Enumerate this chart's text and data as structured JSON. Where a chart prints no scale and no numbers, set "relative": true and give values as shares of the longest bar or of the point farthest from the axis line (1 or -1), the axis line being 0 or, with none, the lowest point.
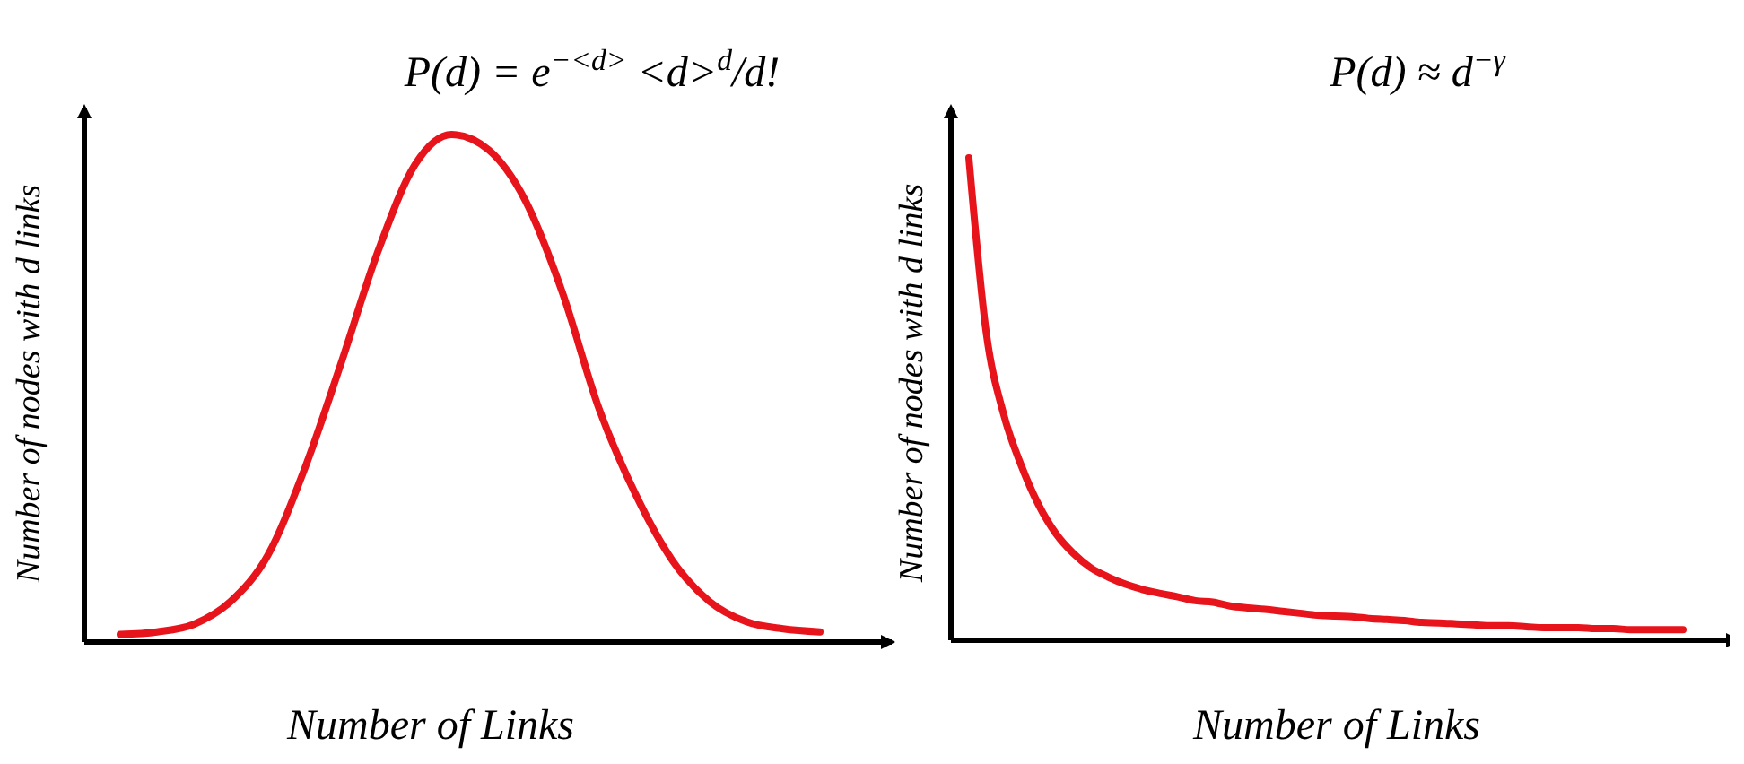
{
  "chart_data": [
    {
      "type": "line",
      "title": "P(d) = e$^{−<d>}$ <d>$^{d}$/d!",
      "xlabel": "Number of Links",
      "ylabel": "Number of nodes with d links",
      "relative": true,
      "categories": [
        null,
        null,
        null,
        null,
        null,
        null,
        null,
        null,
        null,
        null,
        null,
        null,
        null,
        null,
        null,
        null,
        null,
        null,
        null,
        null
      ],
      "series": [
        {
          "color": "#e8141b",
          "values": [
            0.015,
            0.02,
            0.035,
            0.08,
            0.17,
            0.34,
            0.55,
            0.77,
            0.94,
            1,
            0.97,
            0.87,
            0.69,
            0.46,
            0.29,
            0.16,
            0.08,
            0.04,
            0.026,
            0.02
          ]
        }
      ]
    },
    {
      "type": "line",
      "title": "P(d) ≈ d$^{−γ}$",
      "xlabel": "Number of Links",
      "ylabel": "Number of nodes with d links",
      "relative": true,
      "categories": [
        null,
        null,
        null,
        null,
        null,
        null,
        null,
        null,
        null,
        null,
        null,
        null,
        null,
        null,
        null,
        null,
        null,
        null,
        null,
        null,
        null,
        null,
        null,
        null,
        null,
        null,
        null,
        null,
        null,
        null,
        null,
        null,
        null,
        null,
        null,
        null,
        null,
        null,
        null,
        null,
        null,
        null
      ],
      "series": [
        {
          "color": "#e8141b",
          "values": [
            1,
            0.637,
            0.468,
            0.363,
            0.281,
            0.221,
            0.18,
            0.15,
            0.131,
            0.116,
            0.105,
            0.097,
            0.09,
            0.082,
            0.079,
            0.071,
            0.067,
            0.064,
            0.06,
            0.056,
            0.052,
            0.05,
            0.049,
            0.045,
            0.043,
            0.041,
            0.037,
            0.036,
            0.034,
            0.032,
            0.03,
            0.03,
            0.028,
            0.026,
            0.026,
            0.026,
            0.024,
            0.024,
            0.022,
            0.022,
            0.022,
            0.022
          ]
        }
      ]
    }
  ]
}
